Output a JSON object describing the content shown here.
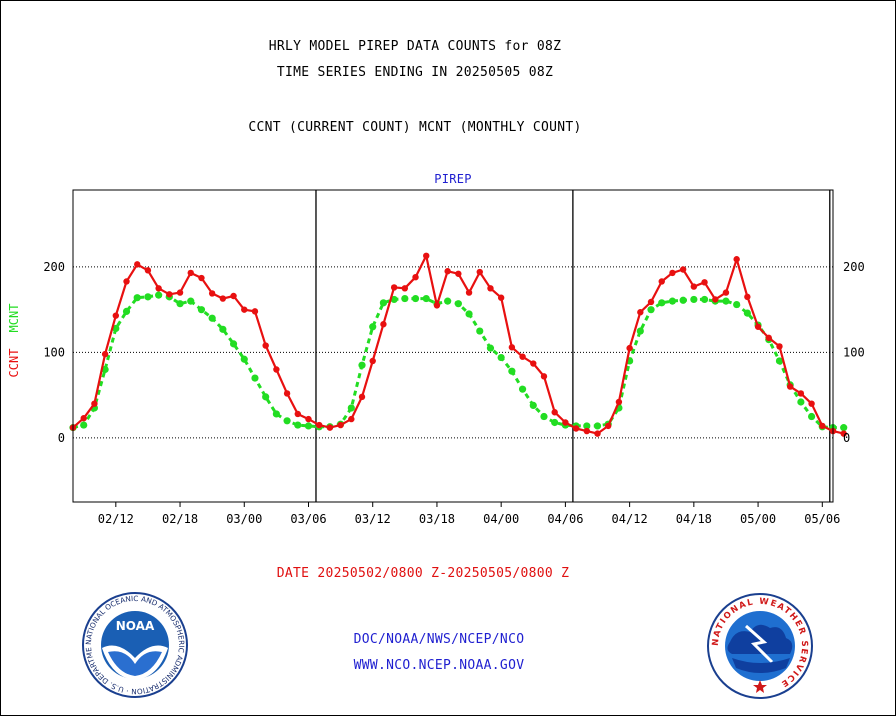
{
  "header": {
    "title": "HRLY MODEL PIREP DATA COUNTS for 08Z",
    "subtitle": "TIME SERIES ENDING IN 20250505 08Z",
    "legend_text": "CCNT (CURRENT COUNT) MCNT (MONTHLY COUNT)"
  },
  "footer": {
    "date_range": "DATE 20250502/0800 Z-20250505/0800 Z",
    "credit_line1": "DOC/NOAA/NWS/NCEP/NCO",
    "credit_line2": "WWW.NCO.NCEP.NOAA.GOV"
  },
  "colors": {
    "ccnt": "#e81010",
    "mcnt": "#22dd22",
    "panel_label": "#1f1fd0",
    "noaa_blue": "#1a5fb4",
    "nws_blue": "#1f6fd0"
  },
  "logos": {
    "noaa": {
      "label": "NOAA",
      "ring_text": "NATIONAL OCEANIC AND ATMOSPHERIC ADMINISTRATION · U.S. DEPARTMENT OF COMMERCE"
    },
    "nws": {
      "ring_text": "NATIONAL WEATHER SERVICE"
    }
  },
  "chart_data": {
    "type": "line",
    "panel_label": "PIREP",
    "ylabel_left": "CCNT",
    "ylabel_right": "MCNT",
    "ylim": [
      -75,
      290
    ],
    "y_ticks": [
      0,
      100,
      200
    ],
    "grid": true,
    "x_tick_labels": [
      "02/12",
      "02/18",
      "03/00",
      "03/06",
      "03/12",
      "03/18",
      "04/00",
      "04/06",
      "04/12",
      "04/18",
      "05/00",
      "05/06"
    ],
    "x_index_range": [
      0,
      71
    ],
    "x_tick_index": [
      4,
      10,
      16,
      22,
      28,
      34,
      40,
      46,
      52,
      58,
      64,
      70
    ],
    "day_boundaries_index": [
      22.7,
      46.7,
      70.7
    ],
    "series": [
      {
        "name": "CCNT",
        "values": [
          12,
          23,
          40,
          98,
          143,
          183,
          203,
          196,
          175,
          168,
          170,
          193,
          187,
          169,
          163,
          166,
          150,
          148,
          108,
          80,
          52,
          28,
          22,
          15,
          12,
          15,
          22,
          48,
          90,
          133,
          176,
          175,
          188,
          213,
          155,
          195,
          192,
          170,
          194,
          175,
          164,
          106,
          95,
          87,
          72,
          30,
          18,
          11,
          8,
          5,
          14,
          42,
          105,
          147,
          159,
          183,
          193,
          197,
          177,
          182,
          162,
          170,
          209,
          165,
          130,
          117,
          107,
          60,
          52,
          40,
          14,
          8,
          5
        ]
      },
      {
        "name": "MCNT",
        "values": [
          12,
          15,
          35,
          80,
          128,
          148,
          164,
          165,
          167,
          165,
          157,
          160,
          150,
          140,
          127,
          110,
          92,
          70,
          48,
          28,
          20,
          15,
          14,
          13,
          13,
          16,
          35,
          85,
          130,
          158,
          162,
          163,
          163,
          163,
          157,
          160,
          157,
          145,
          125,
          105,
          94,
          78,
          57,
          38,
          25,
          18,
          15,
          14,
          14,
          14,
          16,
          35,
          90,
          125,
          150,
          158,
          160,
          161,
          162,
          162,
          160,
          160,
          156,
          146,
          132,
          115,
          90,
          62,
          42,
          25,
          13,
          12,
          12
        ]
      }
    ]
  }
}
